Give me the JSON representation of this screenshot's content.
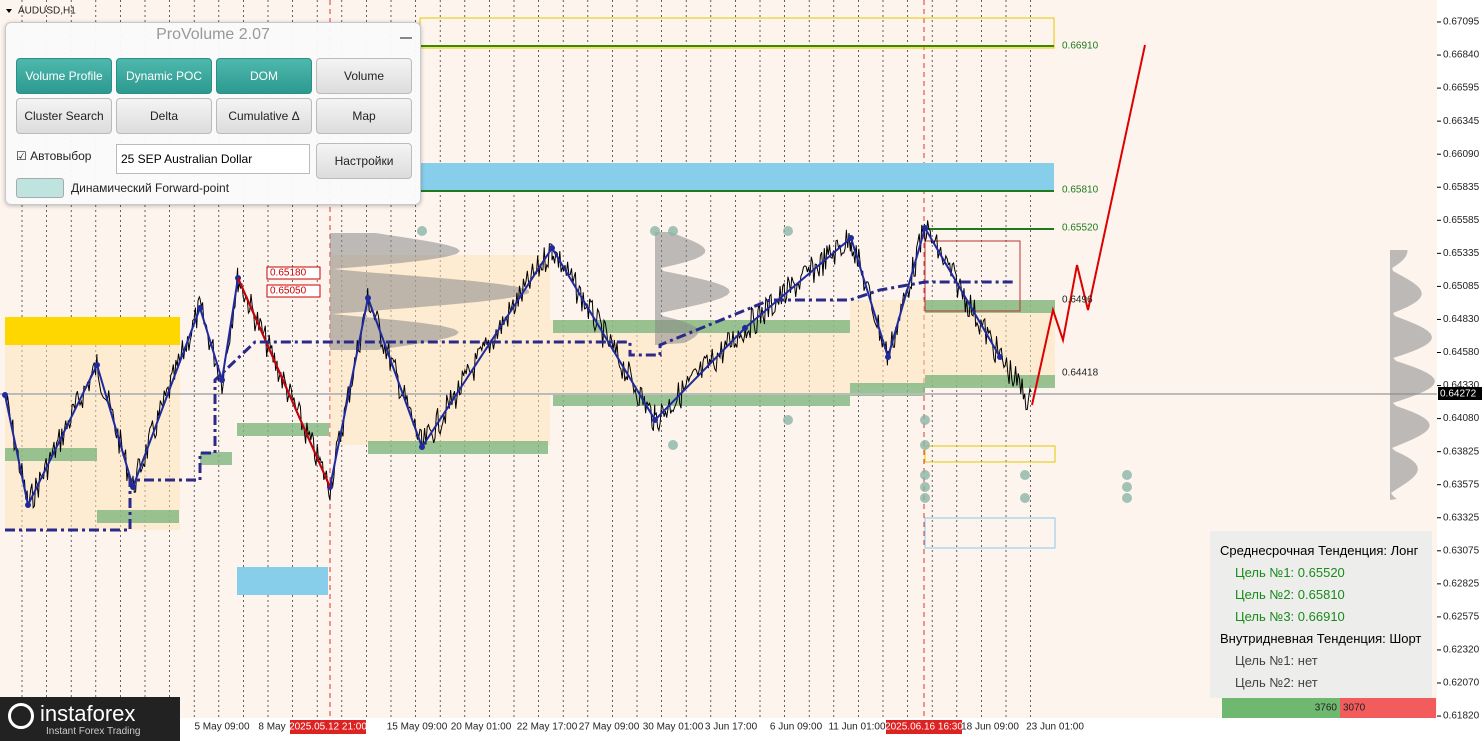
{
  "symbol": "AUDUSD,H1",
  "panel": {
    "title": "ProVolume 2.07",
    "buttons": [
      "Volume Profile",
      "Dynamic POC",
      "DOM",
      "Volume",
      "Cluster Search",
      "Delta",
      "Cumulative Δ",
      "Map"
    ],
    "auto_label": "Автовыбор",
    "instrument": "25 SEP Australian Dollar",
    "settings": "Настройки",
    "forward_point": "Динамический Forward-point"
  },
  "price_axis": [
    "0.67095",
    "0.66840",
    "0.66595",
    "0.66345",
    "0.66090",
    "0.65835",
    "0.65585",
    "0.65335",
    "0.65085",
    "0.64830",
    "0.64580",
    "0.64330",
    "0.64080",
    "0.63825",
    "0.63575",
    "0.63325",
    "0.63075",
    "0.62825",
    "0.62575",
    "0.62320",
    "0.62070",
    "0.61820"
  ],
  "current_price": "0.64272",
  "time_axis": [
    "5 May 09:00",
    "8 May",
    "2025.05.12 21:00",
    "15 May 09:00",
    "20 May 01:00",
    "22 May 17:00",
    "27 May 09:00",
    "30 May 01:00",
    "3 Jun 17:00",
    "6 Jun 09:00",
    "11 Jun 01:00",
    "2025.06.16 16:30",
    "18 Jun 09:00",
    "23 Jun 01:00"
  ],
  "levels": [
    "0.66910",
    "0.65810",
    "0.65520",
    "0.6496",
    "0.64418",
    "0.65180",
    "0.65050"
  ],
  "info": {
    "medium_term": "Среднесрочная Тенденция: Лонг",
    "targets_long": [
      "Цель №1: 0.65520",
      "Цель №2: 0.65810",
      "Цель №3: 0.66910"
    ],
    "intraday": "Внутридневная Тенденция: Шорт",
    "targets_short": [
      "Цель №1: нет",
      "Цель №2: нет"
    ]
  },
  "volume_bar": [
    "3760",
    "3070"
  ],
  "logo": {
    "name": "instaforex",
    "tagline": "Instant Forex Trading"
  }
}
